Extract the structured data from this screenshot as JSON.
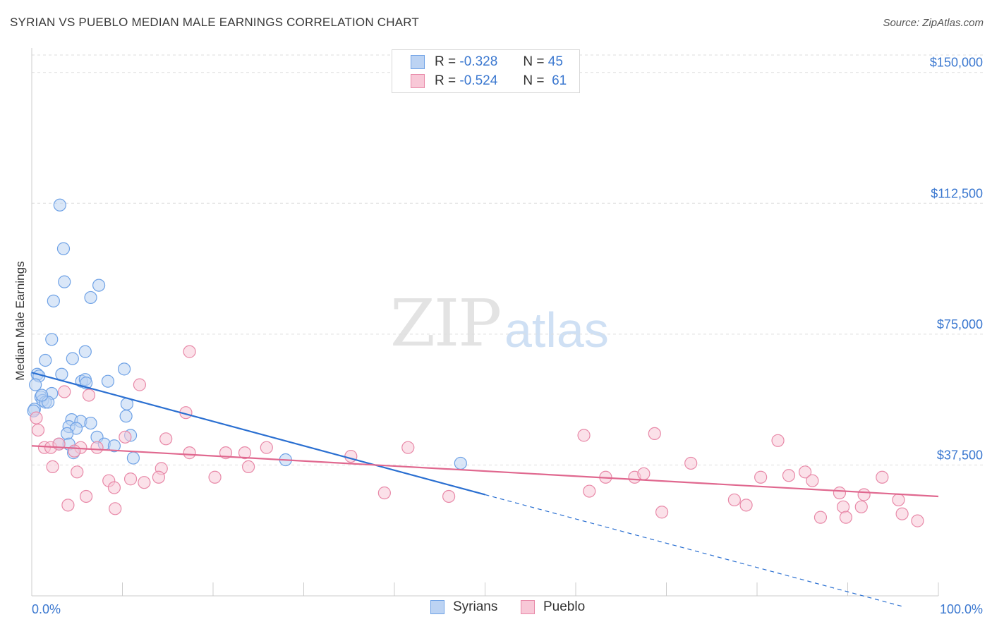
{
  "header": {
    "title": "SYRIAN VS PUEBLO MEDIAN MALE EARNINGS CORRELATION CHART",
    "source": "Source: ZipAtlas.com"
  },
  "watermark": {
    "zip": "ZIP",
    "atlas": "atlas"
  },
  "legend": {
    "rows": [
      {
        "r_label": "R =",
        "r_value": "-0.328",
        "n_label": "N =",
        "n_value": "45",
        "color": "#6fa2e6",
        "fill": "#bcd3f3"
      },
      {
        "r_label": "R =",
        "r_value": "-0.524",
        "n_label": "N =",
        "n_value": "61",
        "color": "#e889a8",
        "fill": "#f8c8d7"
      }
    ]
  },
  "bottom_legend": {
    "syrians": "Syrians",
    "pueblo": "Pueblo"
  },
  "chart_data": {
    "type": "scatter",
    "title": "SYRIAN VS PUEBLO MEDIAN MALE EARNINGS CORRELATION CHART",
    "xlabel": "",
    "ylabel": "Median Male Earnings",
    "xlim": [
      0,
      100
    ],
    "ylim": [
      0,
      155000
    ],
    "x_tick_labels": [
      "0.0%",
      "100.0%"
    ],
    "y_ticks": [
      37500,
      75000,
      112500,
      150000
    ],
    "y_tick_labels": [
      "$37,500",
      "$75,000",
      "$112,500",
      "$150,000"
    ],
    "grid": true,
    "legend_position": "top-center",
    "series": [
      {
        "name": "Syrians",
        "color": "#6fa2e6",
        "fill": "#bcd3f3",
        "trend_color": "#2a6fd1",
        "trend": {
          "x0": 0,
          "y0": 64000,
          "x1": 50,
          "y1": 29000,
          "dash_to_x": 96,
          "dash_to_y": -3000
        },
        "points": [
          [
            3.1,
            112000
          ],
          [
            3.5,
            99500
          ],
          [
            3.6,
            90000
          ],
          [
            7.4,
            89000
          ],
          [
            2.4,
            84500
          ],
          [
            6.5,
            85500
          ],
          [
            2.2,
            73500
          ],
          [
            5.9,
            70000
          ],
          [
            1.5,
            67500
          ],
          [
            4.5,
            68000
          ],
          [
            10.2,
            65000
          ],
          [
            0.6,
            63500
          ],
          [
            0.8,
            63000
          ],
          [
            3.3,
            63500
          ],
          [
            5.5,
            61500
          ],
          [
            5.9,
            62000
          ],
          [
            6.0,
            61000
          ],
          [
            8.4,
            61500
          ],
          [
            0.4,
            60500
          ],
          [
            2.2,
            58000
          ],
          [
            1.0,
            57000
          ],
          [
            1.2,
            56000
          ],
          [
            1.5,
            55500
          ],
          [
            1.8,
            55500
          ],
          [
            1.1,
            57500
          ],
          [
            10.5,
            55000
          ],
          [
            0.3,
            53500
          ],
          [
            4.4,
            50500
          ],
          [
            5.4,
            50000
          ],
          [
            6.5,
            49500
          ],
          [
            10.4,
            51500
          ],
          [
            4.1,
            48500
          ],
          [
            4.9,
            48000
          ],
          [
            3.9,
            46500
          ],
          [
            7.2,
            45500
          ],
          [
            10.9,
            46000
          ],
          [
            8.0,
            43500
          ],
          [
            9.1,
            43000
          ],
          [
            3.0,
            43500
          ],
          [
            4.1,
            43500
          ],
          [
            4.6,
            41000
          ],
          [
            11.2,
            39500
          ],
          [
            28.0,
            39000
          ],
          [
            47.3,
            38000
          ],
          [
            0.2,
            53000
          ]
        ]
      },
      {
        "name": "Pueblo",
        "color": "#e889a8",
        "fill": "#f8c8d7",
        "trend_color": "#e0688f",
        "trend": {
          "x0": 0,
          "y0": 43000,
          "x1": 100,
          "y1": 28500
        },
        "points": [
          [
            17.4,
            70000
          ],
          [
            11.9,
            60500
          ],
          [
            3.6,
            58500
          ],
          [
            6.3,
            57500
          ],
          [
            0.5,
            51000
          ],
          [
            0.7,
            47500
          ],
          [
            17.0,
            52500
          ],
          [
            10.3,
            45500
          ],
          [
            14.8,
            45000
          ],
          [
            60.9,
            46000
          ],
          [
            68.7,
            46500
          ],
          [
            82.3,
            44500
          ],
          [
            1.4,
            42500
          ],
          [
            2.1,
            42500
          ],
          [
            3.0,
            43500
          ],
          [
            5.4,
            42500
          ],
          [
            7.2,
            42500
          ],
          [
            25.9,
            42500
          ],
          [
            41.5,
            42500
          ],
          [
            17.4,
            41000
          ],
          [
            21.4,
            41000
          ],
          [
            23.5,
            41000
          ],
          [
            35.2,
            40000
          ],
          [
            4.7,
            41500
          ],
          [
            2.3,
            37000
          ],
          [
            5.0,
            35500
          ],
          [
            23.9,
            37000
          ],
          [
            72.7,
            38000
          ],
          [
            14.3,
            36500
          ],
          [
            8.5,
            33000
          ],
          [
            10.9,
            33500
          ],
          [
            12.4,
            32500
          ],
          [
            14.0,
            34000
          ],
          [
            20.2,
            34000
          ],
          [
            63.3,
            34000
          ],
          [
            66.5,
            34000
          ],
          [
            67.5,
            35000
          ],
          [
            80.4,
            34000
          ],
          [
            83.5,
            34500
          ],
          [
            85.3,
            35500
          ],
          [
            86.1,
            33000
          ],
          [
            93.8,
            34000
          ],
          [
            9.1,
            31000
          ],
          [
            61.5,
            30000
          ],
          [
            38.9,
            29500
          ],
          [
            46.0,
            28500
          ],
          [
            89.1,
            29500
          ],
          [
            91.8,
            29000
          ],
          [
            6.0,
            28500
          ],
          [
            77.5,
            27500
          ],
          [
            78.8,
            26000
          ],
          [
            95.6,
            27500
          ],
          [
            4.0,
            26000
          ],
          [
            9.2,
            25000
          ],
          [
            69.5,
            24000
          ],
          [
            89.5,
            25500
          ],
          [
            91.5,
            25500
          ],
          [
            87.0,
            22500
          ],
          [
            89.8,
            22500
          ],
          [
            96.0,
            23500
          ],
          [
            97.7,
            21500
          ]
        ]
      }
    ]
  }
}
